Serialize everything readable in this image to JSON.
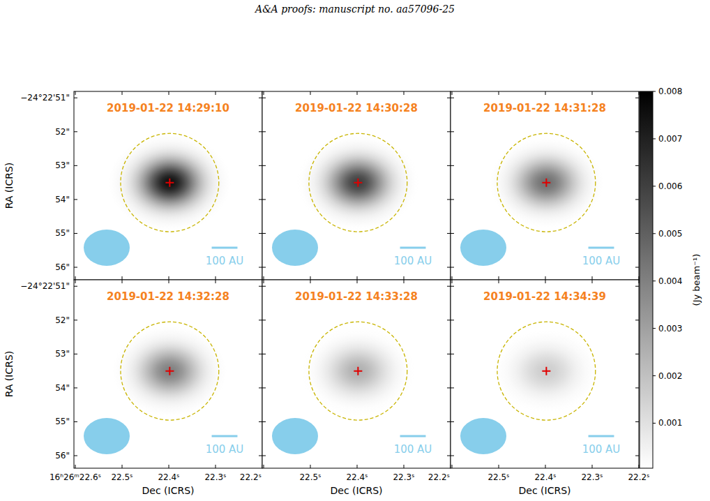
{
  "header": "A&A proofs: manuscript no. aa57096-25",
  "chart_data": {
    "type": "heatmap",
    "x_label": "Dec (ICRS)",
    "y_label": "RA (ICRS)",
    "xlim": [
      22.603,
      22.2
    ],
    "xticks": [
      {
        "value": 22.6,
        "label": "16ʰ26ᵐ22.6ˢ"
      },
      {
        "value": 22.5,
        "label": "22.5ˢ"
      },
      {
        "value": 22.4,
        "label": "22.4ˢ"
      },
      {
        "value": 22.3,
        "label": "22.3ˢ"
      },
      {
        "value": 22.2,
        "label": "22.2ˢ"
      }
    ],
    "ylim": [
      56.37,
      50.81
    ],
    "yticks": [
      {
        "value": 51,
        "label": "−24°22'51\""
      },
      {
        "value": 52,
        "label": "52\""
      },
      {
        "value": 53,
        "label": "53\""
      },
      {
        "value": 54,
        "label": "54\""
      },
      {
        "value": 55,
        "label": "55\""
      },
      {
        "value": 56,
        "label": "56\""
      }
    ],
    "colorbar": {
      "label": "(Jy beam⁻¹)",
      "range": [
        5e-05,
        0.008
      ],
      "ticks": [
        0.001,
        0.002,
        0.003,
        0.004,
        0.005,
        0.006,
        0.007,
        0.008
      ]
    },
    "panels": [
      {
        "title": "2019-01-22 14:29:10",
        "peak": 0.0075
      },
      {
        "title": "2019-01-22 14:30:28",
        "peak": 0.006
      },
      {
        "title": "2019-01-22 14:31:28",
        "peak": 0.0045
      },
      {
        "title": "2019-01-22 14:32:28",
        "peak": 0.004
      },
      {
        "title": "2019-01-22 14:33:28",
        "peak": 0.0025
      },
      {
        "title": "2019-01-22 14:34:39",
        "peak": 0.0016
      }
    ],
    "source": {
      "x": 22.398,
      "y": 53.5
    },
    "aperture_radius": 1.45,
    "beam": {
      "major": 1.36,
      "minor": 1.07
    },
    "scale_bar": {
      "label": "100 AU",
      "length": 0.76
    }
  }
}
